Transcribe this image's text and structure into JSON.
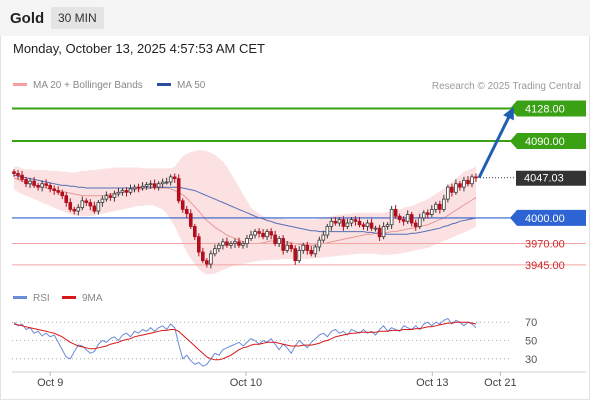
{
  "header": {
    "title": "Gold",
    "timeframe": "30 MIN"
  },
  "datetime": "Monday, October 13, 2025 4:57:53 AM CET",
  "legend": {
    "ma20_label": "MA 20 + Bollinger Bands",
    "ma50_label": "MA 50",
    "rsi_label": "RSI",
    "rsi9ma_label": "9MA"
  },
  "credit": "Research © 2025 Trading Central",
  "colors": {
    "up": "#3a3a3a",
    "down": "#b10f1f",
    "band": "#fadcdc",
    "ma20": "#e89898",
    "ma50": "#5570b8",
    "pivot": "#3060c8",
    "target": "#3aa014",
    "support": "#f2a4a4",
    "arrow": "#1f5fb1",
    "rsi": "#6a8dd8",
    "rsi9ma": "#d81818"
  },
  "chart_data": [
    {
      "type": "candlestick",
      "title": "Gold 30 MIN",
      "ylim": [
        3925,
        4138
      ],
      "x_ticks": [
        "Oct 9",
        "Oct 10",
        "Oct 13",
        "Oct 21"
      ],
      "levels": [
        {
          "label": "4128.00",
          "value": 4128,
          "kind": "target"
        },
        {
          "label": "4090.00",
          "value": 4090,
          "kind": "target"
        },
        {
          "label": "4047.03",
          "value": 4047.03,
          "kind": "last"
        },
        {
          "label": "4000.00",
          "value": 4000,
          "kind": "pivot"
        },
        {
          "label": "3970.00",
          "value": 3970,
          "kind": "support"
        },
        {
          "label": "3945.00",
          "value": 3945,
          "kind": "support"
        }
      ],
      "close": [
        4052,
        4050,
        4045,
        4040,
        4043,
        4038,
        4036,
        4040,
        4038,
        4034,
        4032,
        4030,
        4026,
        4018,
        4010,
        4008,
        4012,
        4020,
        4018,
        4014,
        4008,
        4018,
        4022,
        4026,
        4024,
        4028,
        4030,
        4032,
        4030,
        4034,
        4036,
        4035,
        4037,
        4039,
        4040,
        4036,
        4040,
        4042,
        4042,
        4048,
        4046,
        4020,
        4010,
        4005,
        3990,
        3978,
        3960,
        3950,
        3946,
        3958,
        3964,
        3968,
        3972,
        3968,
        3970,
        3972,
        3968,
        3970,
        3976,
        3980,
        3984,
        3982,
        3978,
        3984,
        3980,
        3970,
        3976,
        3962,
        3968,
        3964,
        3950,
        3962,
        3968,
        3962,
        3958,
        3966,
        3974,
        3980,
        3990,
        3996,
        3994,
        3998,
        3990,
        3994,
        3998,
        3996,
        3992,
        3990,
        3994,
        3988,
        3988,
        3978,
        3990,
        3992,
        4010,
        4002,
        3998,
        3996,
        4004,
        3994,
        3990,
        4000,
        4006,
        4004,
        4010,
        4016,
        4010,
        4022,
        4036,
        4030,
        4040,
        4036,
        4044,
        4040,
        4048,
        4047.03
      ],
      "ma20": [
        4047,
        4045,
        4043,
        4041,
        4040,
        4038,
        4037,
        4036,
        4035,
        4034,
        4033,
        4032,
        4031,
        4030,
        4029,
        4028,
        4027,
        4026,
        4026,
        4026,
        4026,
        4026,
        4026,
        4027,
        4028,
        4029,
        4030,
        4030,
        4031,
        4032,
        4033,
        4033,
        4034,
        4034,
        4035,
        4035,
        4035,
        4035,
        4035,
        4034,
        4032,
        4030,
        4027,
        4023,
        4018,
        4013,
        4008,
        4002,
        3997,
        3993,
        3989,
        3986,
        3983,
        3980,
        3978,
        3976,
        3974,
        3972,
        3971,
        3970,
        3970,
        3970,
        3971,
        3972,
        3973,
        3973,
        3973,
        3972,
        3972,
        3971,
        3970,
        3969,
        3969,
        3968,
        3968,
        3968,
        3969,
        3970,
        3971,
        3972,
        3973,
        3974,
        3975,
        3976,
        3977,
        3978,
        3979,
        3980,
        3981,
        3981,
        3982,
        3982,
        3982,
        3983,
        3984,
        3984,
        3985,
        3986,
        3987,
        3988,
        3989,
        3990,
        3991,
        3992,
        3994,
        3996,
        3998,
        4000,
        4003,
        4006,
        4009,
        4012,
        4015,
        4018,
        4021,
        4024
      ],
      "bb_upper": [
        4060,
        4060,
        4058,
        4057,
        4057,
        4056,
        4056,
        4056,
        4056,
        4055,
        4055,
        4055,
        4054,
        4054,
        4053,
        4053,
        4054,
        4055,
        4055,
        4056,
        4056,
        4057,
        4057,
        4058,
        4058,
        4059,
        4059,
        4059,
        4059,
        4059,
        4059,
        4059,
        4058,
        4058,
        4058,
        4058,
        4058,
        4058,
        4058,
        4058,
        4060,
        4066,
        4072,
        4075,
        4077,
        4078,
        4079,
        4079,
        4078,
        4076,
        4074,
        4070,
        4066,
        4060,
        4052,
        4044,
        4036,
        4028,
        4020,
        4012,
        4008,
        4005,
        4002,
        4000,
        4000,
        4000,
        4000,
        3999,
        3998,
        3998,
        3998,
        3998,
        3998,
        3998,
        3998,
        3998,
        3999,
        4000,
        4001,
        4002,
        4003,
        4004,
        4004,
        4005,
        4005,
        4006,
        4006,
        4006,
        4006,
        4006,
        4006,
        4006,
        4006,
        4007,
        4008,
        4009,
        4010,
        4012,
        4013,
        4014,
        4016,
        4018,
        4020,
        4022,
        4025,
        4028,
        4031,
        4034,
        4038,
        4042,
        4046,
        4050,
        4054,
        4056,
        4058,
        4060
      ],
      "bb_lower": [
        4034,
        4030,
        4028,
        4026,
        4024,
        4022,
        4020,
        4018,
        4016,
        4014,
        4012,
        4010,
        4008,
        4006,
        4004,
        4003,
        4002,
        4002,
        4002,
        4002,
        4003,
        4004,
        4005,
        4006,
        4007,
        4008,
        4009,
        4010,
        4011,
        4012,
        4013,
        4014,
        4014,
        4015,
        4015,
        4014,
        4012,
        4010,
        4005,
        3998,
        3990,
        3980,
        3970,
        3960,
        3952,
        3946,
        3940,
        3936,
        3934,
        3934,
        3935,
        3937,
        3939,
        3941,
        3943,
        3944,
        3945,
        3946,
        3947,
        3948,
        3949,
        3950,
        3950,
        3951,
        3951,
        3951,
        3951,
        3952,
        3952,
        3952,
        3952,
        3952,
        3952,
        3952,
        3952,
        3953,
        3953,
        3954,
        3954,
        3955,
        3955,
        3956,
        3956,
        3957,
        3957,
        3958,
        3958,
        3958,
        3958,
        3958,
        3958,
        3957,
        3957,
        3957,
        3957,
        3958,
        3958,
        3959,
        3960,
        3961,
        3962,
        3963,
        3964,
        3965,
        3967,
        3969,
        3971,
        3973,
        3975,
        3977,
        3979,
        3981,
        3983,
        3985,
        3987,
        3990
      ],
      "ma50": [
        4050,
        4049,
        4048,
        4047,
        4046,
        4045,
        4044,
        4043,
        4042,
        4041,
        4040,
        4039,
        4038,
        4038,
        4037,
        4037,
        4036,
        4036,
        4035,
        4035,
        4035,
        4035,
        4035,
        4035,
        4035,
        4035,
        4035,
        4035,
        4035,
        4035,
        4035,
        4035,
        4036,
        4036,
        4036,
        4036,
        4036,
        4036,
        4036,
        4036,
        4036,
        4036,
        4035,
        4034,
        4033,
        4032,
        4030,
        4028,
        4026,
        4024,
        4022,
        4020,
        4018,
        4016,
        4014,
        4012,
        4010,
        4008,
        4006,
        4004,
        4002,
        4000,
        3999,
        3997,
        3996,
        3994,
        3993,
        3992,
        3991,
        3990,
        3989,
        3988,
        3987,
        3986,
        3985,
        3985,
        3984,
        3984,
        3984,
        3984,
        3984,
        3984,
        3984,
        3984,
        3984,
        3984,
        3984,
        3984,
        3983,
        3983,
        3982,
        3982,
        3981,
        3981,
        3981,
        3981,
        3981,
        3981,
        3981,
        3982,
        3982,
        3983,
        3984,
        3985,
        3986,
        3987,
        3988,
        3990,
        3991,
        3993,
        3994,
        3996,
        3997,
        3998,
        3999,
        4000
      ],
      "forecast": [
        4047.03,
        4128
      ]
    },
    {
      "type": "line",
      "title": "RSI",
      "ylim": [
        20,
        80
      ],
      "y_ticks": [
        70,
        50,
        30
      ],
      "series": [
        {
          "name": "RSI",
          "values": [
            70,
            66,
            68,
            62,
            64,
            58,
            60,
            55,
            58,
            54,
            56,
            48,
            40,
            32,
            30,
            38,
            45,
            44,
            40,
            36,
            38,
            46,
            50,
            48,
            52,
            54,
            50,
            56,
            58,
            54,
            60,
            58,
            62,
            60,
            64,
            60,
            64,
            66,
            62,
            68,
            64,
            46,
            30,
            34,
            28,
            24,
            26,
            22,
            24,
            30,
            36,
            34,
            40,
            42,
            44,
            46,
            48,
            44,
            48,
            52,
            50,
            46,
            50,
            48,
            52,
            46,
            40,
            46,
            42,
            36,
            44,
            50,
            46,
            42,
            48,
            52,
            56,
            58,
            54,
            60,
            62,
            58,
            60,
            56,
            62,
            60,
            58,
            62,
            58,
            60,
            56,
            62,
            66,
            60,
            64,
            62,
            60,
            66,
            64,
            62,
            66,
            62,
            68,
            70,
            66,
            70,
            68,
            72,
            74,
            68,
            72,
            70,
            66,
            70,
            68,
            64
          ]
        },
        {
          "name": "9MA",
          "values": [
            68,
            67,
            66,
            65,
            64,
            63,
            62,
            61,
            60,
            59,
            58,
            56,
            54,
            51,
            48,
            46,
            44,
            43,
            42,
            41,
            41,
            42,
            43,
            44,
            46,
            47,
            48,
            50,
            51,
            52,
            54,
            55,
            56,
            57,
            58,
            59,
            60,
            61,
            61,
            62,
            62,
            60,
            56,
            52,
            48,
            44,
            40,
            36,
            32,
            30,
            29,
            29,
            30,
            32,
            34,
            37,
            40,
            42,
            43,
            45,
            46,
            46,
            47,
            48,
            48,
            48,
            47,
            46,
            45,
            44,
            44,
            44,
            45,
            45,
            45,
            46,
            47,
            49,
            50,
            52,
            54,
            55,
            56,
            57,
            58,
            58,
            59,
            59,
            59,
            59,
            59,
            60,
            60,
            60,
            61,
            61,
            61,
            62,
            62,
            62,
            63,
            63,
            64,
            65,
            65,
            66,
            67,
            68,
            69,
            69,
            70,
            70,
            70,
            70,
            69,
            68
          ]
        }
      ]
    }
  ]
}
